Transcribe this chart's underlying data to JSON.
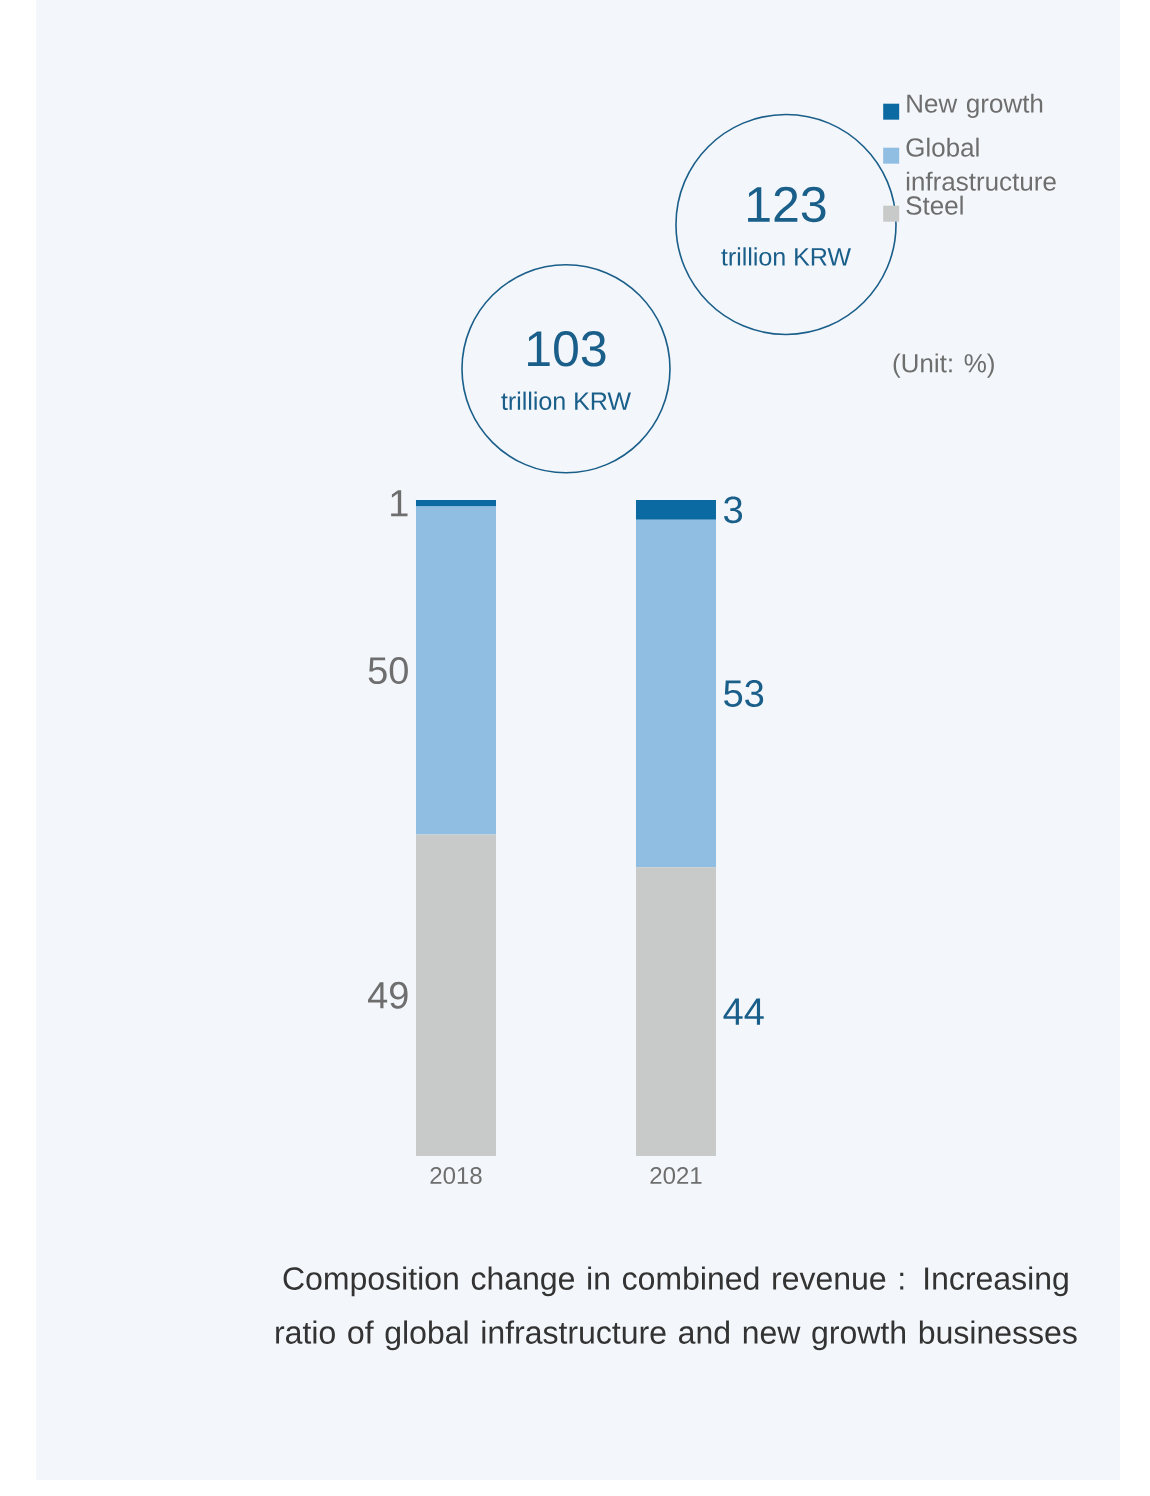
{
  "chart_data": {
    "type": "bar",
    "stacked": true,
    "data_labels": true,
    "legend": "top right",
    "title": "Composition change in combined revenue : Increasing ratio of global infrastructure and new growth businesses",
    "categories": [
      "2018",
      "2021"
    ],
    "series": [
      {
        "name": "Steel",
        "color": "#c8c9c9",
        "values": [
          49,
          44
        ]
      },
      {
        "name": "Global infrastructure",
        "color": "#90bde2",
        "values": [
          50,
          53
        ]
      },
      {
        "name": "New growth",
        "color": "#0b6aa2",
        "values": [
          1,
          3
        ]
      }
    ],
    "annotations": [
      "103",
      "trillion KRW",
      "123",
      "trillion KRW",
      "(Unit: %)"
    ]
  }
}
